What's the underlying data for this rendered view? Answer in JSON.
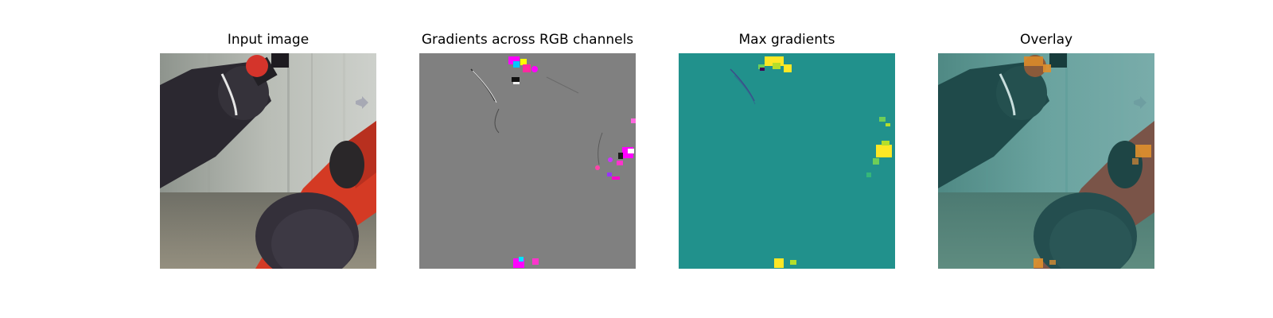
{
  "figure": {
    "panels": [
      {
        "title": "Input image",
        "kind": "photo"
      },
      {
        "title": "Gradients across RGB channels",
        "kind": "rgb-gradient"
      },
      {
        "title": "Max gradients",
        "kind": "max-gradient"
      },
      {
        "title": "Overlay",
        "kind": "overlay"
      }
    ]
  },
  "colors": {
    "background": "#ffffff",
    "gradient_neutral": "#808080",
    "max_gradient_base": "#21918c",
    "max_gradient_high": "#fde725",
    "robot_red": "#d43a24",
    "robot_black": "#2b2830",
    "overlay_tint": "#2a8c88"
  }
}
